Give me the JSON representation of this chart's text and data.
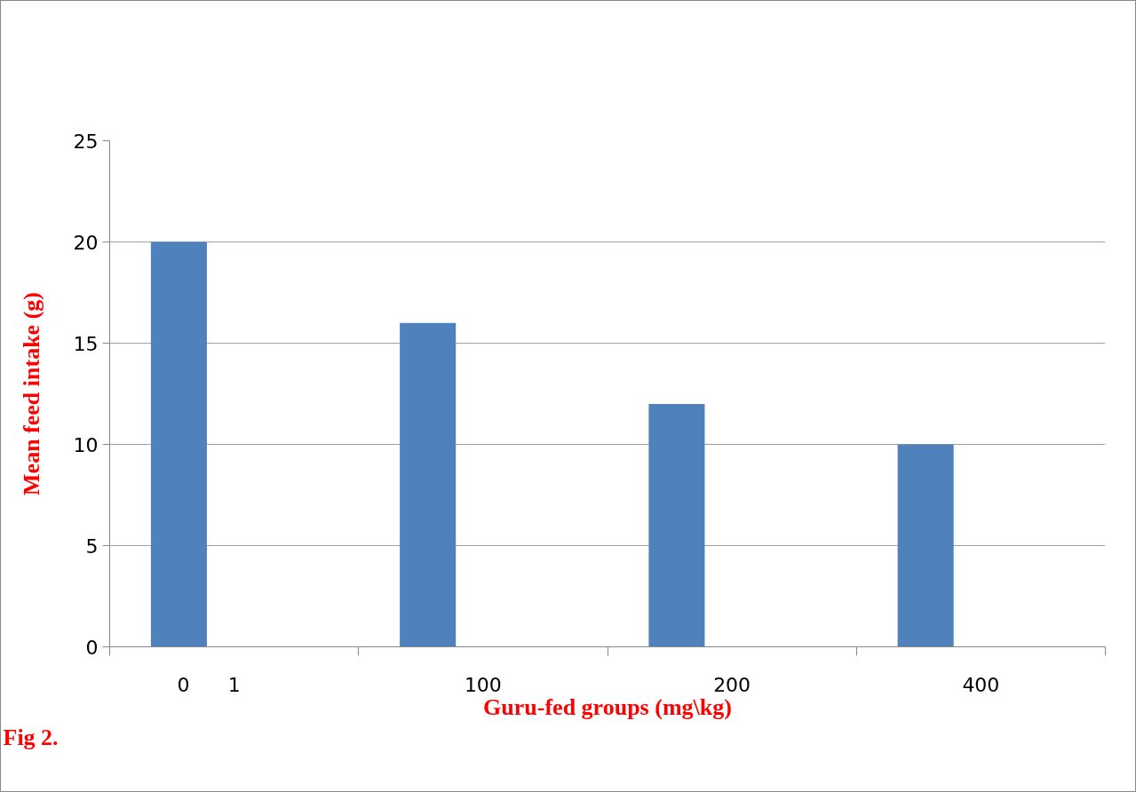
{
  "chart_data": {
    "type": "bar",
    "categories": [
      "1",
      "100",
      "200",
      "400"
    ],
    "values": [
      20,
      16,
      12,
      10
    ],
    "color": "#4f81bd",
    "xlabel": "Guru-fed groups (mg\\kg)",
    "ylabel": "Mean feed intake (g)",
    "ylim": [
      0,
      25
    ],
    "yticks": [
      0,
      5,
      10,
      15,
      20,
      25
    ],
    "grid": "y",
    "annotations": [
      "0",
      "Fig 2."
    ]
  }
}
